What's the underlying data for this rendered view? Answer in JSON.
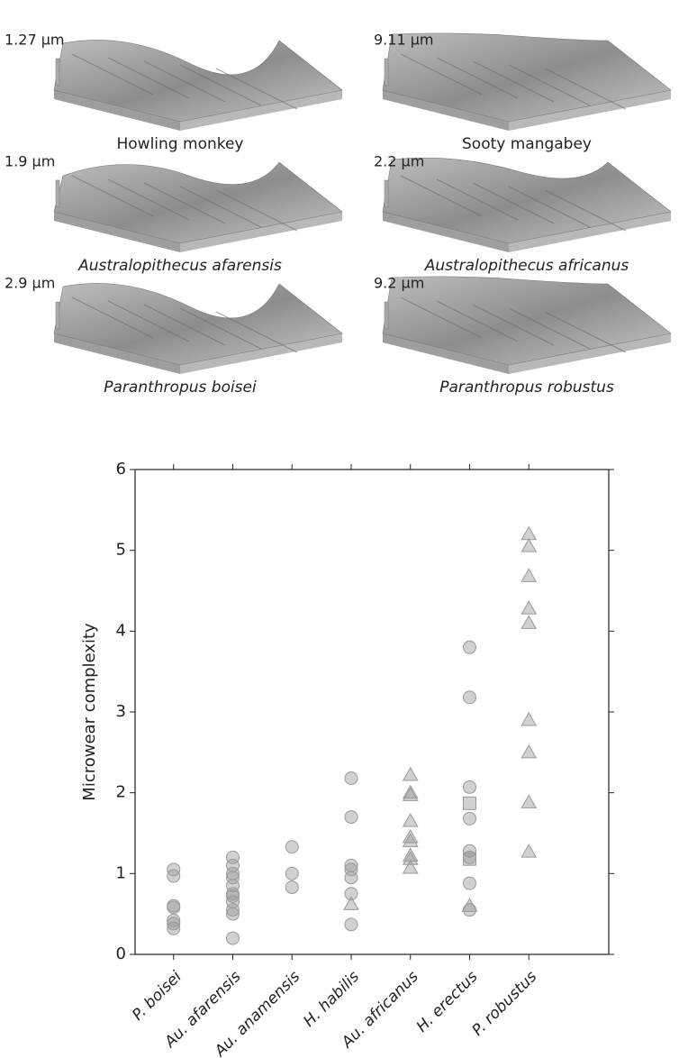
{
  "panels": [
    {
      "scale": "1.27 µm",
      "caption": "Howling monkey",
      "italic": false
    },
    {
      "scale": "9.11 µm",
      "caption": "Sooty mangabey",
      "italic": false
    },
    {
      "scale": "1.9 µm",
      "caption": "Australopithecus afarensis",
      "italic": true
    },
    {
      "scale": "2.2 µm",
      "caption": "Australopithecus africanus",
      "italic": true
    },
    {
      "scale": "2.9 µm",
      "caption": "Paranthropus boisei",
      "italic": true
    },
    {
      "scale": "9.2 µm",
      "caption": "Paranthropus robustus",
      "italic": true
    }
  ],
  "chart_data": {
    "type": "strip",
    "y_label": "Microwear complexity",
    "categories": [
      "P. boisei",
      "Au. afarensis",
      "Au. anamensis",
      "H. habilis",
      "Au. africanus",
      "H. erectus",
      "P. robustus"
    ],
    "values": [
      [
        1.05,
        0.97,
        0.6,
        0.58,
        0.42,
        0.38,
        0.32
      ],
      [
        1.2,
        1.1,
        1.0,
        0.95,
        0.85,
        0.75,
        0.72,
        0.65,
        0.55,
        0.5,
        0.2
      ],
      [
        1.33,
        1.0,
        0.83
      ],
      [
        2.18,
        1.7,
        1.1,
        1.05,
        0.95,
        0.75,
        0.62,
        0.37
      ],
      [
        2.22,
        2.0,
        1.97,
        1.65,
        1.45,
        1.4,
        1.22,
        1.18,
        1.07
      ],
      [
        3.8,
        3.18,
        2.07,
        1.87,
        1.68,
        1.28,
        1.2,
        1.18,
        0.88,
        0.6,
        0.55
      ],
      [
        5.2,
        5.05,
        4.68,
        4.28,
        4.1,
        2.9,
        2.5,
        1.88,
        1.27
      ]
    ],
    "markers": [
      [
        "circle",
        "circle",
        "circle",
        "circle",
        "circle",
        "circle",
        "circle"
      ],
      [
        "circle",
        "circle",
        "circle",
        "circle",
        "circle",
        "circle",
        "circle",
        "circle",
        "circle",
        "circle",
        "circle"
      ],
      [
        "circle",
        "circle",
        "circle"
      ],
      [
        "circle",
        "circle",
        "circle",
        "circle",
        "circle",
        "circle",
        "triangle",
        "circle"
      ],
      [
        "triangle",
        "triangle",
        "triangle",
        "triangle",
        "triangle",
        "triangle",
        "triangle",
        "triangle",
        "triangle"
      ],
      [
        "circle",
        "circle",
        "circle",
        "square",
        "circle",
        "circle",
        "circle",
        "square",
        "circle",
        "triangle",
        "circle"
      ],
      [
        "triangle",
        "triangle",
        "triangle",
        "triangle",
        "triangle",
        "triangle",
        "triangle",
        "triangle",
        "triangle"
      ]
    ],
    "color": "#9a9a9a",
    "ylim": [
      0,
      6
    ],
    "yticks": [
      0,
      1,
      2,
      3,
      4,
      5,
      6
    ]
  }
}
